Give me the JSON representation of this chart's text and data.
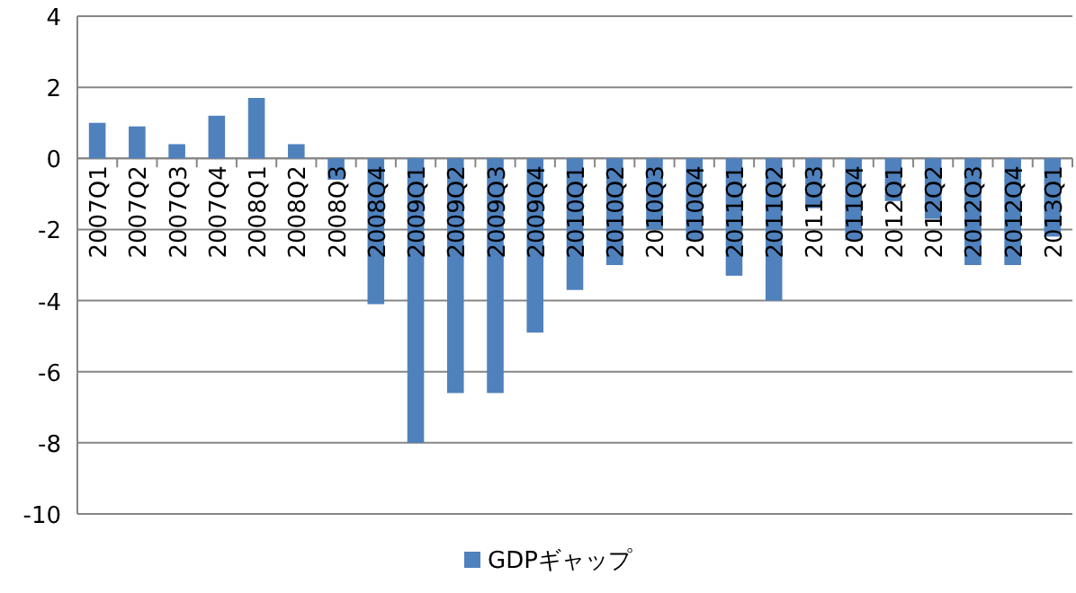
{
  "chart_data": {
    "type": "bar",
    "categories": [
      "2007Q1",
      "2007Q2",
      "2007Q3",
      "2007Q4",
      "2008Q1",
      "2008Q2",
      "2008Q3",
      "2008Q4",
      "2009Q1",
      "2009Q2",
      "2009Q3",
      "2009Q4",
      "2010Q1",
      "2010Q2",
      "2010Q3",
      "2010Q4",
      "2011Q1",
      "2011Q2",
      "2011Q3",
      "2011Q4",
      "2012Q1",
      "2012Q2",
      "2012Q3",
      "2012Q4",
      "2013Q1"
    ],
    "series": [
      {
        "name": "GDPギャップ",
        "color": "#4f81bd",
        "values": [
          1.0,
          0.9,
          0.4,
          1.2,
          1.7,
          0.4,
          -0.6,
          -4.1,
          -8.0,
          -6.6,
          -6.6,
          -4.9,
          -3.7,
          -3.0,
          -2.0,
          -2.3,
          -3.3,
          -4.0,
          -1.4,
          -2.3,
          -1.2,
          -1.7,
          -3.0,
          -3.0,
          -2.2
        ]
      }
    ],
    "ylim": [
      -10,
      4
    ],
    "yticks": [
      -10,
      -8,
      -6,
      -4,
      -2,
      0,
      2,
      4
    ],
    "grid": "y",
    "legend": "bottom"
  }
}
